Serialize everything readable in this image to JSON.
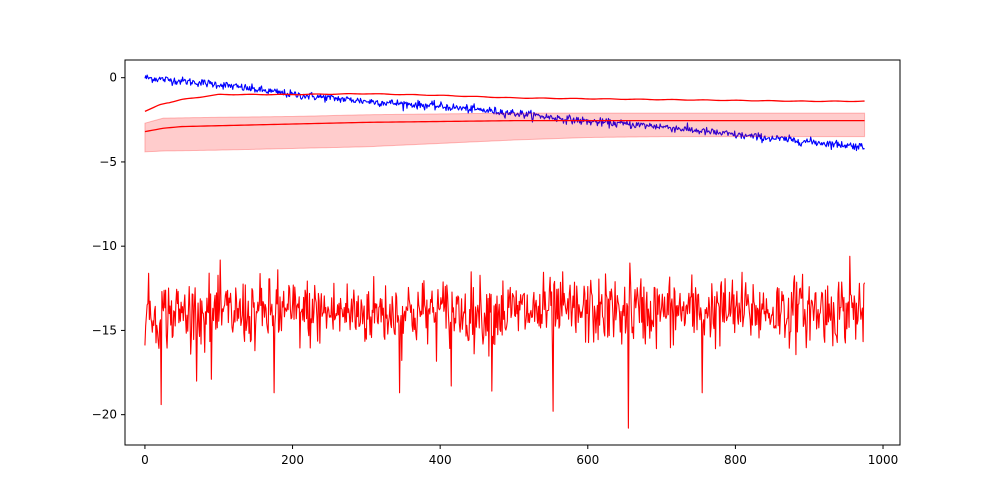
{
  "chart_data": {
    "type": "line",
    "title": "",
    "xlabel": "",
    "ylabel": "",
    "xlim": [
      -27,
      1023
    ],
    "ylim": [
      -21.8,
      1.05
    ],
    "grid": false,
    "legend": null,
    "x_ticks": [
      0,
      200,
      400,
      600,
      800,
      1000
    ],
    "x_tick_labels": [
      "0",
      "200",
      "400",
      "600",
      "800",
      "1000"
    ],
    "y_ticks": [
      0,
      -5,
      -10,
      -15,
      -20
    ],
    "y_tick_labels": [
      "0",
      "−5",
      "−10",
      "−15",
      "−20"
    ],
    "x_max": 975,
    "series": [
      {
        "kind": "noisy_line",
        "color": "#0000ff",
        "values_at": [
          {
            "x": 0,
            "y": 0.0
          },
          {
            "x": 100,
            "y": -0.4
          },
          {
            "x": 200,
            "y": -1.0
          },
          {
            "x": 300,
            "y": -1.4
          },
          {
            "x": 400,
            "y": -1.7
          },
          {
            "x": 500,
            "y": -2.1
          },
          {
            "x": 600,
            "y": -2.6
          },
          {
            "x": 700,
            "y": -2.9
          },
          {
            "x": 800,
            "y": -3.4
          },
          {
            "x": 900,
            "y": -3.8
          },
          {
            "x": 975,
            "y": -4.1
          }
        ],
        "noise_amplitude": 0.12
      },
      {
        "kind": "smooth_line",
        "color": "#ff0000",
        "values_at": [
          {
            "x": 0,
            "y": -2.0
          },
          {
            "x": 20,
            "y": -1.6
          },
          {
            "x": 50,
            "y": -1.3
          },
          {
            "x": 100,
            "y": -1.0
          },
          {
            "x": 200,
            "y": -1.0
          },
          {
            "x": 300,
            "y": -0.95
          },
          {
            "x": 400,
            "y": -1.05
          },
          {
            "x": 500,
            "y": -1.2
          },
          {
            "x": 600,
            "y": -1.25
          },
          {
            "x": 700,
            "y": -1.3
          },
          {
            "x": 800,
            "y": -1.35
          },
          {
            "x": 900,
            "y": -1.4
          },
          {
            "x": 975,
            "y": -1.4
          }
        ]
      },
      {
        "kind": "mean_with_band",
        "color": "#ff0000",
        "band_color": "#ff0000",
        "band_opacity": 0.2,
        "mean_at": [
          {
            "x": 0,
            "y": -3.2
          },
          {
            "x": 25,
            "y": -3.0
          },
          {
            "x": 50,
            "y": -2.9
          },
          {
            "x": 100,
            "y": -2.85
          },
          {
            "x": 200,
            "y": -2.75
          },
          {
            "x": 300,
            "y": -2.65
          },
          {
            "x": 400,
            "y": -2.6
          },
          {
            "x": 500,
            "y": -2.55
          },
          {
            "x": 600,
            "y": -2.55
          },
          {
            "x": 700,
            "y": -2.55
          },
          {
            "x": 800,
            "y": -2.55
          },
          {
            "x": 900,
            "y": -2.55
          },
          {
            "x": 975,
            "y": -2.55
          }
        ],
        "lower_at": [
          {
            "x": 0,
            "y": -4.4
          },
          {
            "x": 25,
            "y": -4.35
          },
          {
            "x": 100,
            "y": -4.3
          },
          {
            "x": 200,
            "y": -4.2
          },
          {
            "x": 300,
            "y": -4.1
          },
          {
            "x": 400,
            "y": -3.9
          },
          {
            "x": 500,
            "y": -3.7
          },
          {
            "x": 600,
            "y": -3.55
          },
          {
            "x": 700,
            "y": -3.5
          },
          {
            "x": 800,
            "y": -3.5
          },
          {
            "x": 900,
            "y": -3.5
          },
          {
            "x": 975,
            "y": -3.5
          }
        ],
        "upper_at": [
          {
            "x": 0,
            "y": -2.7
          },
          {
            "x": 25,
            "y": -2.4
          },
          {
            "x": 100,
            "y": -2.35
          },
          {
            "x": 200,
            "y": -2.3
          },
          {
            "x": 300,
            "y": -2.2
          },
          {
            "x": 400,
            "y": -2.15
          },
          {
            "x": 500,
            "y": -2.1
          },
          {
            "x": 600,
            "y": -2.1
          },
          {
            "x": 700,
            "y": -2.1
          },
          {
            "x": 800,
            "y": -2.1
          },
          {
            "x": 900,
            "y": -2.1
          },
          {
            "x": 975,
            "y": -2.1
          }
        ]
      },
      {
        "kind": "noisy_line",
        "color": "#ff0000",
        "values_at": [
          {
            "x": 0,
            "y": -14.0
          },
          {
            "x": 975,
            "y": -13.8
          }
        ],
        "noise_amplitude": 1.0,
        "spikes": [
          {
            "x": 22,
            "y": -19.4
          },
          {
            "x": 90,
            "y": -17.9
          },
          {
            "x": 175,
            "y": -18.7
          },
          {
            "x": 345,
            "y": -18.7
          },
          {
            "x": 415,
            "y": -18.3
          },
          {
            "x": 470,
            "y": -18.6
          },
          {
            "x": 553,
            "y": -19.8
          },
          {
            "x": 655,
            "y": -20.8
          },
          {
            "x": 755,
            "y": -18.7
          },
          {
            "x": 657,
            "y": -11.0
          },
          {
            "x": 955,
            "y": -10.6
          },
          {
            "x": 180,
            "y": -11.4
          }
        ]
      }
    ]
  }
}
